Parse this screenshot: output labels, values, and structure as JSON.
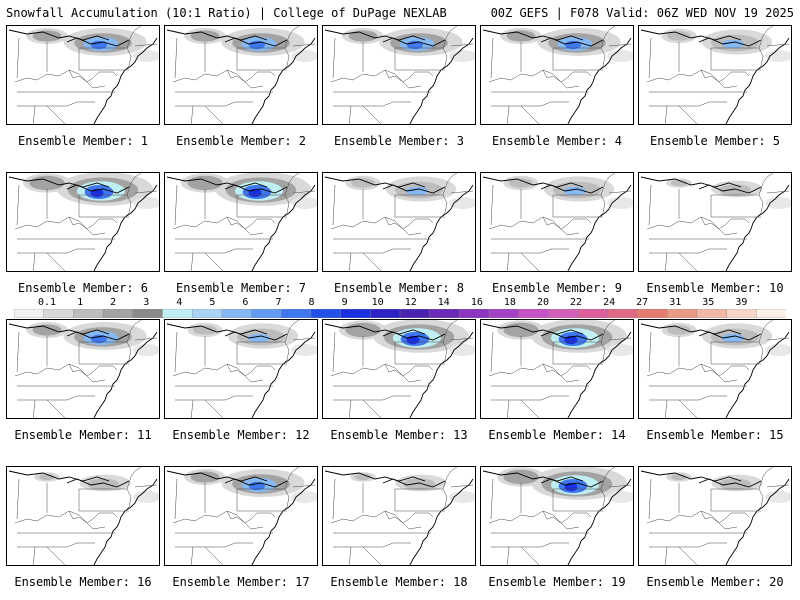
{
  "header": {
    "left_title": "Snowfall Accumulation (10:1 Ratio) | College of DuPage NEXLAB",
    "right_title": "00Z GEFS | F078 Valid: 06Z WED NOV 19 2025"
  },
  "colorbar": {
    "tick_labels": [
      "0.1",
      "1",
      "2",
      "3",
      "4",
      "5",
      "6",
      "7",
      "8",
      "9",
      "10",
      "12",
      "14",
      "16",
      "18",
      "20",
      "22",
      "24",
      "27",
      "31",
      "35",
      "39"
    ],
    "colors": [
      "#f2f2f2",
      "#d9d9d9",
      "#bdbdbd",
      "#a3a3a3",
      "#8a8a8a",
      "#bfeff2",
      "#a9d4f5",
      "#86b8f2",
      "#629cf0",
      "#3f77ee",
      "#2250e6",
      "#1a2fe0",
      "#2c22c4",
      "#4a22b0",
      "#6a2ab8",
      "#8a35bf",
      "#a342c4",
      "#c652c7",
      "#d25fb8",
      "#dc5f9c",
      "#e06a86",
      "#e47c72",
      "#eb9a86",
      "#f0b9a5",
      "#f6d6c8",
      "#fcefe6"
    ]
  },
  "panels": [
    {
      "label": "Ensemble Member: 1",
      "snow": "moderate"
    },
    {
      "label": "Ensemble Member: 2",
      "snow": "moderate"
    },
    {
      "label": "Ensemble Member: 3",
      "snow": "moderate"
    },
    {
      "label": "Ensemble Member: 4",
      "snow": "moderate"
    },
    {
      "label": "Ensemble Member: 5",
      "snow": "light"
    },
    {
      "label": "Ensemble Member: 6",
      "snow": "heavy"
    },
    {
      "label": "Ensemble Member: 7",
      "snow": "heavy"
    },
    {
      "label": "Ensemble Member: 8",
      "snow": "light"
    },
    {
      "label": "Ensemble Member: 9",
      "snow": "light"
    },
    {
      "label": "Ensemble Member: 10",
      "snow": "trace"
    },
    {
      "label": "Ensemble Member: 11",
      "snow": "moderate"
    },
    {
      "label": "Ensemble Member: 12",
      "snow": "light"
    },
    {
      "label": "Ensemble Member: 13",
      "snow": "heavy"
    },
    {
      "label": "Ensemble Member: 14",
      "snow": "heavy"
    },
    {
      "label": "Ensemble Member: 15",
      "snow": "light"
    },
    {
      "label": "Ensemble Member: 16",
      "snow": "trace"
    },
    {
      "label": "Ensemble Member: 17",
      "snow": "moderate"
    },
    {
      "label": "Ensemble Member: 18",
      "snow": "trace"
    },
    {
      "label": "Ensemble Member: 19",
      "snow": "heavy"
    },
    {
      "label": "Ensemble Member: 20",
      "snow": "trace"
    }
  ]
}
